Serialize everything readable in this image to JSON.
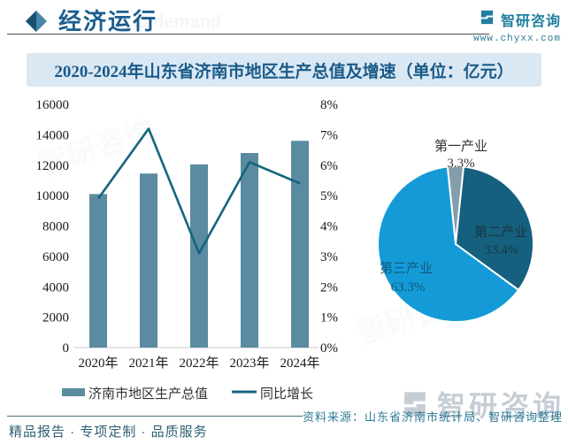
{
  "header": {
    "section_title": "经济运行",
    "brand": {
      "name": "智研咨询",
      "url": "www.chyxx.com"
    }
  },
  "banner": {
    "title": "2020-2024年山东省济南市地区生产总值及增速（单位：亿元）"
  },
  "chart_data": [
    {
      "type": "bar",
      "title": "2020-2024年山东省济南市地区生产总值及增速（单位：亿元）",
      "categories": [
        "2020年",
        "2021年",
        "2022年",
        "2023年",
        "2024年"
      ],
      "series": [
        {
          "name": "济南市地区生产总值",
          "kind": "bar",
          "axis": "left",
          "unit": "亿元",
          "color": "#5a8ba0",
          "values": [
            10100,
            11450,
            12050,
            12800,
            13600
          ]
        },
        {
          "name": "同比增长",
          "kind": "line",
          "axis": "right",
          "unit": "%",
          "color": "#15657f",
          "values": [
            4.9,
            7.2,
            3.1,
            6.1,
            5.4
          ]
        }
      ],
      "left_axis": {
        "min": 0,
        "max": 16000,
        "step": 2000
      },
      "right_axis": {
        "min": 0,
        "max": 8,
        "step": 1,
        "suffix": "%"
      },
      "grid": false,
      "legend_position": "bottom"
    },
    {
      "type": "pie",
      "unit": "%",
      "start_angle_deg": -6,
      "slices": [
        {
          "label": "第一产业",
          "value": 3.3,
          "color": "#849dab"
        },
        {
          "label": "第二产业",
          "value": 33.4,
          "color": "#16607f"
        },
        {
          "label": "第三产业",
          "value": 63.3,
          "color": "#149bd7"
        }
      ]
    }
  ],
  "footer": {
    "source": "资料来源：山东省济南市统计局、智研咨询整理",
    "tagline": "精品报告 · 专项定制 · 品质服务",
    "watermark_brand": "智研咨询"
  },
  "colors": {
    "accent_blue": "#1c5e8e",
    "banner_bg": "#d9e8f3",
    "brand_teal": "#1f7f9f"
  }
}
